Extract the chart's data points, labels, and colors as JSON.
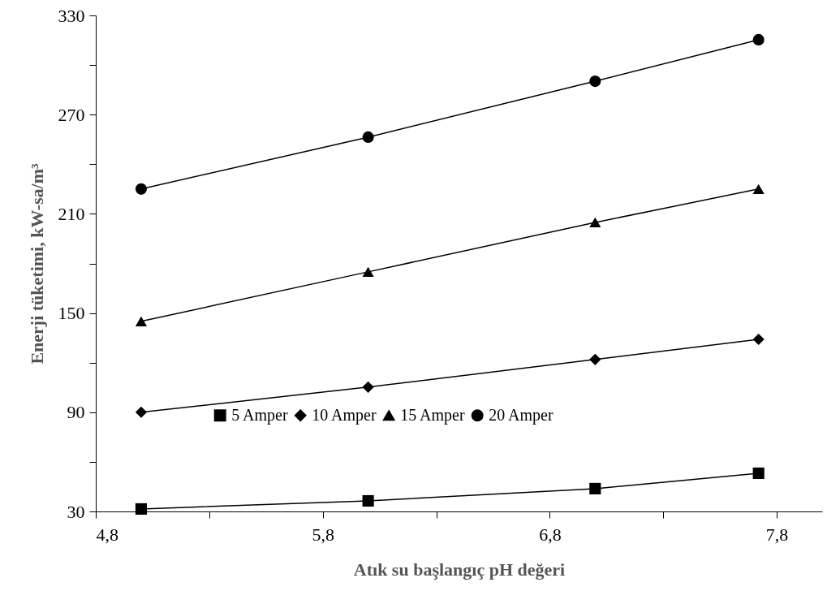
{
  "chart_data": {
    "type": "line",
    "xlabel": "Atık su başlangıç pH değeri",
    "ylabel": "Enerji tüketimi, kW-sa/m³",
    "x": [
      5.0,
      6.0,
      7.0,
      7.72
    ],
    "series": [
      {
        "name": "5 Amper",
        "color": "#000000",
        "marker": "square",
        "values": [
          31.5,
          36.4,
          43.8,
          53.1
        ]
      },
      {
        "name": "10 Amper",
        "color": "#000000",
        "marker": "diamond",
        "values": [
          90,
          105.2,
          121.9,
          134.1
        ]
      },
      {
        "name": "15 Amper",
        "color": "#000000",
        "marker": "triangle",
        "values": [
          145,
          174.9,
          204.8,
          225
        ]
      },
      {
        "name": "20 Amper",
        "color": "#000000",
        "marker": "circle",
        "values": [
          225,
          256.4,
          290.2,
          315.3
        ]
      }
    ],
    "xlim": [
      4.8,
      8.0
    ],
    "xticks": [
      {
        "value": 4.8,
        "label": "4,8"
      },
      {
        "value": 5.3,
        "label": null
      },
      {
        "value": 5.8,
        "label": "5,8"
      },
      {
        "value": 6.3,
        "label": null
      },
      {
        "value": 6.8,
        "label": "6,8"
      },
      {
        "value": 7.3,
        "label": null
      },
      {
        "value": 7.8,
        "label": "7,8"
      }
    ],
    "ylim": [
      30,
      330
    ],
    "yticks": [
      30,
      {
        "value": 60,
        "label": null
      },
      90,
      {
        "value": 120,
        "label": null
      },
      150,
      {
        "value": 180,
        "label": null
      },
      210,
      {
        "value": 240,
        "label": null
      },
      270,
      {
        "value": 300,
        "label": null
      },
      330
    ],
    "grid": false,
    "legend": "bottom",
    "line_style": "solid"
  }
}
